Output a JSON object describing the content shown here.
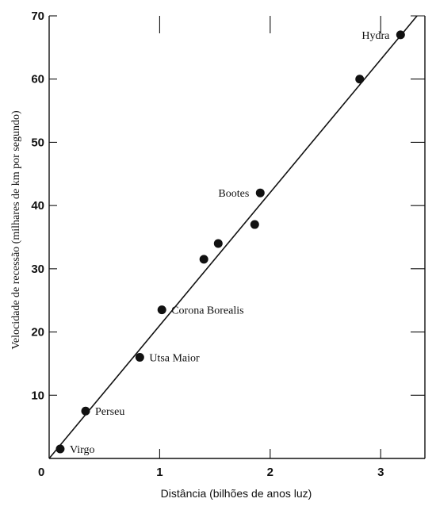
{
  "chart_data": {
    "type": "scatter",
    "xlabel": "Distância (bilhões de anos luz)",
    "ylabel": "Velocidade de recessão (milhares de km por segundo)",
    "xlim": [
      0,
      3.4
    ],
    "ylim": [
      0,
      70
    ],
    "origin_label": "0",
    "x_ticks": [
      {
        "value": 1,
        "label": "1"
      },
      {
        "value": 2,
        "label": "2"
      },
      {
        "value": 3,
        "label": "3"
      }
    ],
    "y_ticks": [
      {
        "value": 10,
        "label": "10"
      },
      {
        "value": 20,
        "label": "20"
      },
      {
        "value": 30,
        "label": "30"
      },
      {
        "value": 40,
        "label": "40"
      },
      {
        "value": 50,
        "label": "50"
      },
      {
        "value": 60,
        "label": "60"
      },
      {
        "value": 70,
        "label": "70"
      }
    ],
    "points": [
      {
        "x": 0.1,
        "y": 1.5,
        "label": "Virgo",
        "label_side": "right"
      },
      {
        "x": 0.33,
        "y": 7.5,
        "label": "Perseu",
        "label_side": "right"
      },
      {
        "x": 0.82,
        "y": 16.0,
        "label": "Utsa Maior",
        "label_side": "right"
      },
      {
        "x": 1.02,
        "y": 23.5,
        "label": "Corona Borealis",
        "label_side": "right"
      },
      {
        "x": 1.4,
        "y": 31.5,
        "label": "",
        "label_side": "right"
      },
      {
        "x": 1.53,
        "y": 34.0,
        "label": "",
        "label_side": "right"
      },
      {
        "x": 1.86,
        "y": 37.0,
        "label": "",
        "label_side": "right"
      },
      {
        "x": 1.91,
        "y": 42.0,
        "label": "Bootes",
        "label_side": "left"
      },
      {
        "x": 2.81,
        "y": 60.0,
        "label": "",
        "label_side": "right"
      },
      {
        "x": 3.18,
        "y": 67.0,
        "label": "Hydra",
        "label_side": "left"
      }
    ],
    "fit_line": {
      "x": [
        0,
        3.4
      ],
      "y": [
        0,
        71.5
      ]
    },
    "grid": false
  }
}
